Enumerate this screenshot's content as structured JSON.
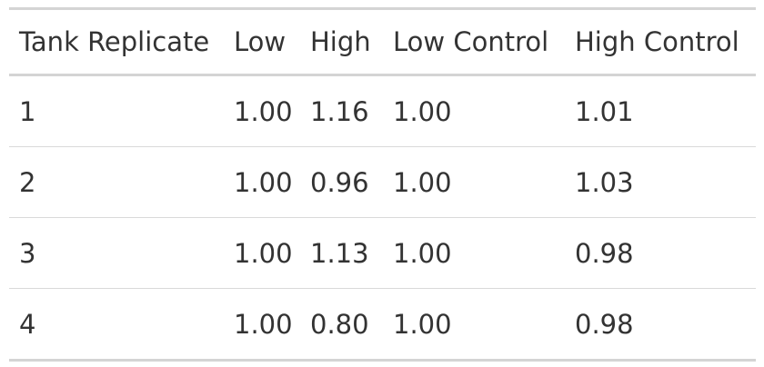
{
  "table": {
    "columns": [
      "Tank Replicate",
      "Low",
      "High",
      "Low Control",
      "High Control"
    ],
    "rows": [
      [
        "1",
        "1.00",
        "1.16",
        "1.00",
        "1.01"
      ],
      [
        "2",
        "1.00",
        "0.96",
        "1.00",
        "1.03"
      ],
      [
        "3",
        "1.00",
        "1.13",
        "1.00",
        "0.98"
      ],
      [
        "4",
        "1.00",
        "0.80",
        "1.00",
        "0.98"
      ]
    ]
  }
}
